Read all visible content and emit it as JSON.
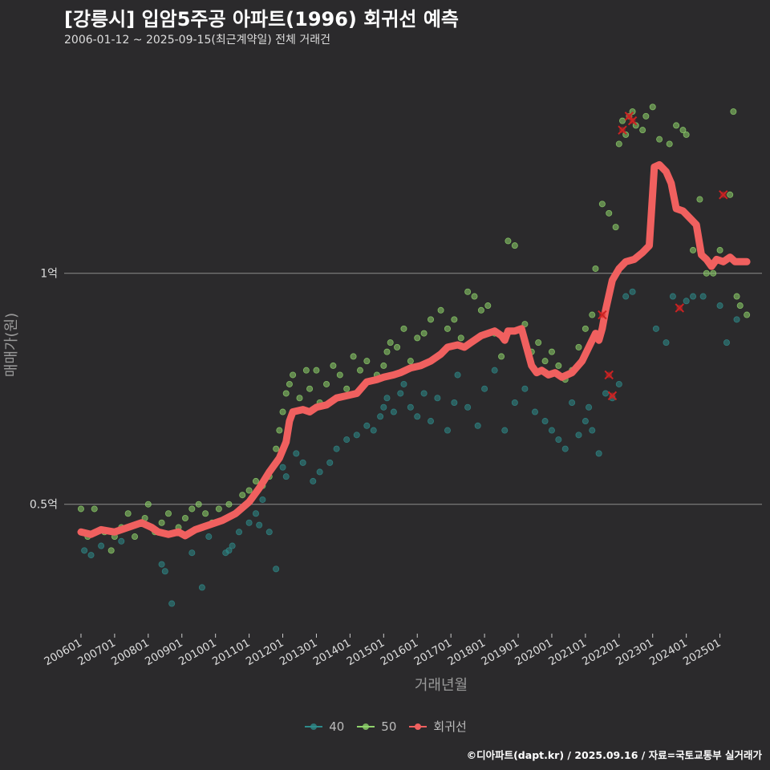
{
  "title": "[강릉시] 입암5주공 아파트(1996) 회귀선 예측",
  "subtitle": "2006-01-12 ~ 2025-09-15(최근계약일) 전체 거래건",
  "caption": "©디아파트(dapt.kr) / 2025.09.16 / 자료=국토교통부 실거래가",
  "colors": {
    "background": "#2b2a2c",
    "grid": "#8c8c8c",
    "series_40": "#2e8b8b",
    "series_50": "#8fd36b",
    "regression": "#f0605f",
    "outlier": "#cc2222"
  },
  "chart_data": {
    "type": "scatter",
    "xlabel": "거래년월",
    "ylabel": "매매가(원)",
    "x_range": [
      2005.5,
      2026.25
    ],
    "ylim": [
      0.22,
      1.47
    ],
    "y_unit": "억",
    "y_ticks": [
      {
        "value": 0.5,
        "label": "0.5억"
      },
      {
        "value": 1.0,
        "label": "1억"
      }
    ],
    "x_ticks": [
      "200601",
      "200701",
      "200801",
      "200901",
      "201001",
      "201101",
      "201201",
      "201301",
      "201401",
      "201501",
      "201601",
      "201701",
      "201801",
      "201901",
      "202001",
      "202101",
      "202201",
      "202301",
      "202401",
      "202501"
    ],
    "legend": [
      {
        "name": "40",
        "color_key": "series_40"
      },
      {
        "name": "50",
        "color_key": "series_50"
      },
      {
        "name": "회귀선",
        "color_key": "regression"
      }
    ],
    "regression": [
      [
        2006.0,
        0.44
      ],
      [
        2006.3,
        0.435
      ],
      [
        2006.6,
        0.445
      ],
      [
        2007.0,
        0.44
      ],
      [
        2007.4,
        0.45
      ],
      [
        2007.8,
        0.46
      ],
      [
        2008.1,
        0.45
      ],
      [
        2008.3,
        0.44
      ],
      [
        2008.6,
        0.435
      ],
      [
        2008.9,
        0.44
      ],
      [
        2009.1,
        0.432
      ],
      [
        2009.4,
        0.445
      ],
      [
        2009.8,
        0.455
      ],
      [
        2010.2,
        0.465
      ],
      [
        2010.6,
        0.48
      ],
      [
        2011.0,
        0.505
      ],
      [
        2011.3,
        0.535
      ],
      [
        2011.6,
        0.57
      ],
      [
        2011.9,
        0.6
      ],
      [
        2012.1,
        0.635
      ],
      [
        2012.2,
        0.68
      ],
      [
        2012.3,
        0.7
      ],
      [
        2012.6,
        0.705
      ],
      [
        2012.8,
        0.7
      ],
      [
        2013.0,
        0.71
      ],
      [
        2013.3,
        0.715
      ],
      [
        2013.6,
        0.73
      ],
      [
        2013.9,
        0.735
      ],
      [
        2014.2,
        0.74
      ],
      [
        2014.5,
        0.765
      ],
      [
        2014.8,
        0.77
      ],
      [
        2015.0,
        0.775
      ],
      [
        2015.3,
        0.78
      ],
      [
        2015.5,
        0.785
      ],
      [
        2015.8,
        0.795
      ],
      [
        2016.1,
        0.8
      ],
      [
        2016.4,
        0.81
      ],
      [
        2016.7,
        0.825
      ],
      [
        2016.9,
        0.84
      ],
      [
        2017.2,
        0.845
      ],
      [
        2017.4,
        0.84
      ],
      [
        2017.6,
        0.85
      ],
      [
        2017.9,
        0.865
      ],
      [
        2018.1,
        0.87
      ],
      [
        2018.3,
        0.875
      ],
      [
        2018.5,
        0.865
      ],
      [
        2018.6,
        0.855
      ],
      [
        2018.7,
        0.875
      ],
      [
        2018.9,
        0.875
      ],
      [
        2019.1,
        0.88
      ],
      [
        2019.25,
        0.84
      ],
      [
        2019.4,
        0.8
      ],
      [
        2019.55,
        0.785
      ],
      [
        2019.7,
        0.79
      ],
      [
        2019.9,
        0.78
      ],
      [
        2020.1,
        0.785
      ],
      [
        2020.3,
        0.775
      ],
      [
        2020.6,
        0.785
      ],
      [
        2020.9,
        0.81
      ],
      [
        2021.1,
        0.84
      ],
      [
        2021.3,
        0.87
      ],
      [
        2021.4,
        0.855
      ],
      [
        2021.5,
        0.88
      ],
      [
        2021.6,
        0.92
      ],
      [
        2021.8,
        0.985
      ],
      [
        2022.0,
        1.01
      ],
      [
        2022.2,
        1.025
      ],
      [
        2022.45,
        1.03
      ],
      [
        2022.7,
        1.045
      ],
      [
        2022.9,
        1.06
      ],
      [
        2023.05,
        1.23
      ],
      [
        2023.2,
        1.235
      ],
      [
        2023.4,
        1.22
      ],
      [
        2023.55,
        1.195
      ],
      [
        2023.7,
        1.14
      ],
      [
        2023.9,
        1.135
      ],
      [
        2024.1,
        1.12
      ],
      [
        2024.3,
        1.105
      ],
      [
        2024.45,
        1.04
      ],
      [
        2024.6,
        1.03
      ],
      [
        2024.75,
        1.015
      ],
      [
        2024.9,
        1.03
      ],
      [
        2025.1,
        1.025
      ],
      [
        2025.3,
        1.035
      ],
      [
        2025.45,
        1.025
      ],
      [
        2025.65,
        1.025
      ],
      [
        2025.8,
        1.025
      ]
    ],
    "series": [
      {
        "name": "40",
        "points": [
          [
            2006.1,
            0.4
          ],
          [
            2006.3,
            0.39
          ],
          [
            2006.6,
            0.41
          ],
          [
            2007.2,
            0.42
          ],
          [
            2008.4,
            0.37
          ],
          [
            2008.5,
            0.355
          ],
          [
            2008.7,
            0.285
          ],
          [
            2009.3,
            0.395
          ],
          [
            2009.6,
            0.32
          ],
          [
            2009.8,
            0.43
          ],
          [
            2010.3,
            0.395
          ],
          [
            2010.4,
            0.4
          ],
          [
            2010.5,
            0.41
          ],
          [
            2010.7,
            0.44
          ],
          [
            2011.0,
            0.46
          ],
          [
            2011.2,
            0.48
          ],
          [
            2011.3,
            0.455
          ],
          [
            2011.4,
            0.51
          ],
          [
            2011.6,
            0.44
          ],
          [
            2011.8,
            0.36
          ],
          [
            2012.0,
            0.58
          ],
          [
            2012.1,
            0.56
          ],
          [
            2012.4,
            0.61
          ],
          [
            2012.6,
            0.59
          ],
          [
            2012.9,
            0.55
          ],
          [
            2013.1,
            0.57
          ],
          [
            2013.4,
            0.59
          ],
          [
            2013.6,
            0.62
          ],
          [
            2013.9,
            0.64
          ],
          [
            2014.2,
            0.65
          ],
          [
            2014.5,
            0.67
          ],
          [
            2014.7,
            0.66
          ],
          [
            2014.9,
            0.69
          ],
          [
            2015.0,
            0.71
          ],
          [
            2015.1,
            0.73
          ],
          [
            2015.3,
            0.7
          ],
          [
            2015.5,
            0.74
          ],
          [
            2015.6,
            0.76
          ],
          [
            2015.8,
            0.71
          ],
          [
            2016.0,
            0.69
          ],
          [
            2016.2,
            0.74
          ],
          [
            2016.4,
            0.68
          ],
          [
            2016.6,
            0.73
          ],
          [
            2016.9,
            0.66
          ],
          [
            2017.1,
            0.72
          ],
          [
            2017.2,
            0.78
          ],
          [
            2017.5,
            0.71
          ],
          [
            2017.8,
            0.67
          ],
          [
            2018.0,
            0.75
          ],
          [
            2018.3,
            0.79
          ],
          [
            2018.6,
            0.66
          ],
          [
            2018.9,
            0.72
          ],
          [
            2019.2,
            0.75
          ],
          [
            2019.5,
            0.7
          ],
          [
            2019.8,
            0.68
          ],
          [
            2020.0,
            0.66
          ],
          [
            2020.2,
            0.64
          ],
          [
            2020.4,
            0.62
          ],
          [
            2020.6,
            0.72
          ],
          [
            2020.8,
            0.65
          ],
          [
            2021.0,
            0.68
          ],
          [
            2021.1,
            0.71
          ],
          [
            2021.2,
            0.66
          ],
          [
            2021.4,
            0.61
          ],
          [
            2021.6,
            0.74
          ],
          [
            2021.8,
            0.73
          ],
          [
            2022.0,
            0.76
          ],
          [
            2022.2,
            0.95
          ],
          [
            2022.4,
            0.96
          ],
          [
            2023.1,
            0.88
          ],
          [
            2023.4,
            0.85
          ],
          [
            2023.6,
            0.95
          ],
          [
            2024.0,
            0.94
          ],
          [
            2024.2,
            0.95
          ],
          [
            2024.5,
            0.95
          ],
          [
            2025.0,
            0.93
          ],
          [
            2025.2,
            0.85
          ],
          [
            2025.5,
            0.9
          ]
        ]
      },
      {
        "name": "50",
        "points": [
          [
            2006.0,
            0.49
          ],
          [
            2006.2,
            0.43
          ],
          [
            2006.4,
            0.49
          ],
          [
            2006.7,
            0.44
          ],
          [
            2006.9,
            0.4
          ],
          [
            2007.0,
            0.43
          ],
          [
            2007.2,
            0.45
          ],
          [
            2007.4,
            0.48
          ],
          [
            2007.6,
            0.43
          ],
          [
            2007.9,
            0.47
          ],
          [
            2008.0,
            0.5
          ],
          [
            2008.2,
            0.44
          ],
          [
            2008.4,
            0.46
          ],
          [
            2008.6,
            0.48
          ],
          [
            2008.9,
            0.45
          ],
          [
            2009.1,
            0.47
          ],
          [
            2009.3,
            0.49
          ],
          [
            2009.5,
            0.5
          ],
          [
            2009.7,
            0.48
          ],
          [
            2009.9,
            0.46
          ],
          [
            2010.1,
            0.49
          ],
          [
            2010.4,
            0.5
          ],
          [
            2010.6,
            0.48
          ],
          [
            2010.8,
            0.52
          ],
          [
            2011.0,
            0.53
          ],
          [
            2011.2,
            0.55
          ],
          [
            2011.4,
            0.54
          ],
          [
            2011.6,
            0.56
          ],
          [
            2011.8,
            0.62
          ],
          [
            2011.9,
            0.66
          ],
          [
            2012.0,
            0.7
          ],
          [
            2012.1,
            0.74
          ],
          [
            2012.2,
            0.76
          ],
          [
            2012.3,
            0.78
          ],
          [
            2012.5,
            0.73
          ],
          [
            2012.7,
            0.79
          ],
          [
            2012.8,
            0.75
          ],
          [
            2013.0,
            0.79
          ],
          [
            2013.1,
            0.72
          ],
          [
            2013.3,
            0.76
          ],
          [
            2013.5,
            0.8
          ],
          [
            2013.7,
            0.78
          ],
          [
            2013.9,
            0.75
          ],
          [
            2014.1,
            0.82
          ],
          [
            2014.3,
            0.79
          ],
          [
            2014.5,
            0.81
          ],
          [
            2014.8,
            0.78
          ],
          [
            2015.0,
            0.8
          ],
          [
            2015.1,
            0.83
          ],
          [
            2015.2,
            0.85
          ],
          [
            2015.4,
            0.84
          ],
          [
            2015.6,
            0.88
          ],
          [
            2015.8,
            0.81
          ],
          [
            2016.0,
            0.86
          ],
          [
            2016.2,
            0.87
          ],
          [
            2016.4,
            0.9
          ],
          [
            2016.7,
            0.92
          ],
          [
            2016.9,
            0.88
          ],
          [
            2017.1,
            0.9
          ],
          [
            2017.3,
            0.86
          ],
          [
            2017.5,
            0.96
          ],
          [
            2017.7,
            0.95
          ],
          [
            2017.9,
            0.92
          ],
          [
            2018.1,
            0.93
          ],
          [
            2018.3,
            0.87
          ],
          [
            2018.5,
            0.82
          ],
          [
            2018.7,
            1.07
          ],
          [
            2018.9,
            1.06
          ],
          [
            2019.2,
            0.89
          ],
          [
            2019.4,
            0.83
          ],
          [
            2019.6,
            0.85
          ],
          [
            2019.8,
            0.81
          ],
          [
            2020.0,
            0.83
          ],
          [
            2020.2,
            0.8
          ],
          [
            2020.4,
            0.77
          ],
          [
            2020.6,
            0.79
          ],
          [
            2020.8,
            0.84
          ],
          [
            2021.0,
            0.88
          ],
          [
            2021.2,
            0.91
          ],
          [
            2021.3,
            1.01
          ],
          [
            2021.5,
            1.15
          ],
          [
            2021.7,
            1.13
          ],
          [
            2021.9,
            1.1
          ],
          [
            2022.0,
            1.28
          ],
          [
            2022.1,
            1.33
          ],
          [
            2022.2,
            1.3
          ],
          [
            2022.3,
            1.34
          ],
          [
            2022.4,
            1.35
          ],
          [
            2022.5,
            1.32
          ],
          [
            2022.7,
            1.31
          ],
          [
            2022.8,
            1.34
          ],
          [
            2023.0,
            1.36
          ],
          [
            2023.2,
            1.29
          ],
          [
            2023.5,
            1.28
          ],
          [
            2023.7,
            1.32
          ],
          [
            2023.9,
            1.31
          ],
          [
            2024.0,
            1.3
          ],
          [
            2024.2,
            1.05
          ],
          [
            2024.4,
            1.16
          ],
          [
            2024.6,
            1.0
          ],
          [
            2024.8,
            1.0
          ],
          [
            2025.0,
            1.05
          ],
          [
            2025.3,
            1.17
          ],
          [
            2025.4,
            1.35
          ],
          [
            2025.5,
            0.95
          ],
          [
            2025.6,
            0.93
          ],
          [
            2025.8,
            0.91
          ]
        ]
      }
    ],
    "outliers": [
      [
        2021.5,
        0.91
      ],
      [
        2021.7,
        0.78
      ],
      [
        2021.8,
        0.735
      ],
      [
        2022.1,
        1.31
      ],
      [
        2022.3,
        1.34
      ],
      [
        2022.4,
        1.33
      ],
      [
        2023.8,
        0.925
      ],
      [
        2025.1,
        1.17
      ]
    ]
  }
}
